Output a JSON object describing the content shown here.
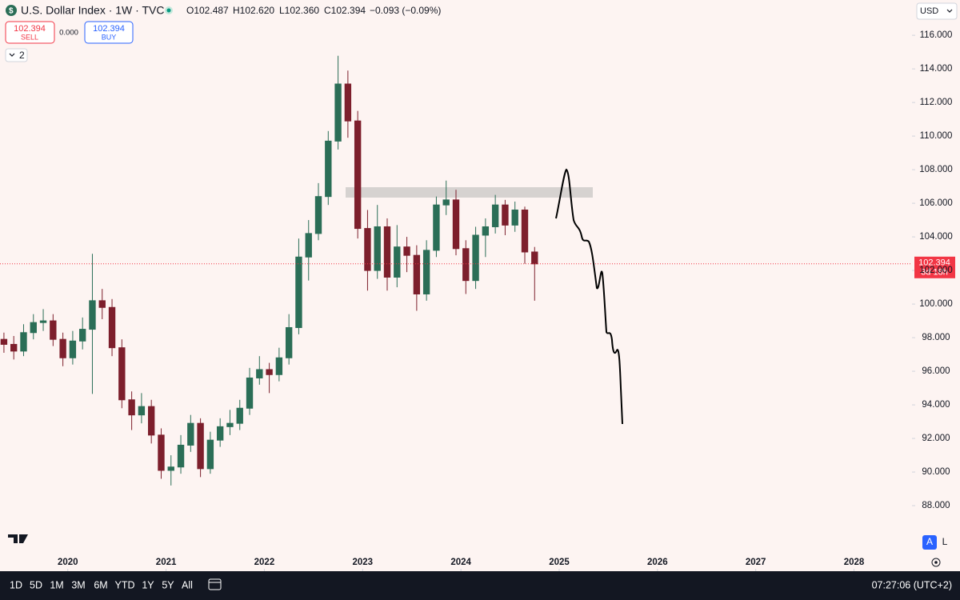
{
  "ui": {
    "title": "U.S. Dollar Index · 1W · TVC",
    "ohlc": [
      "O102.487",
      "H102.620",
      "L102.360",
      "C102.394"
    ],
    "change": "−0.093 (−0.09%)",
    "sell_price": "102.394",
    "sell_label": "SELL",
    "spread": "0.000",
    "buy_price": "102.394",
    "buy_label": "BUY",
    "indicators_count": "2",
    "currency": "USD",
    "auto_label": "A",
    "log_label": "L",
    "timeframes": [
      "1D",
      "5D",
      "1M",
      "3M",
      "6M",
      "YTD",
      "1Y",
      "5Y",
      "All"
    ],
    "clock": "07:27:06 (UTC+2)",
    "countdown": "3d 18h"
  },
  "chart_data": {
    "type": "candlestick",
    "xlim": [
      2019.31,
      2028.59
    ],
    "xticks": [
      2020,
      2021,
      2022,
      2023,
      2024,
      2025,
      2026,
      2027,
      2028
    ],
    "ylim": [
      84.05,
      118.1
    ],
    "yticks": [
      {
        "value": 88,
        "label": "88.000"
      },
      {
        "value": 90,
        "label": "90.000"
      },
      {
        "value": 92,
        "label": "92.000"
      },
      {
        "value": 94,
        "label": "94.000"
      },
      {
        "value": 96,
        "label": "96.000"
      },
      {
        "value": 98,
        "label": "98.000"
      },
      {
        "value": 100,
        "label": "100.000"
      },
      {
        "value": 102,
        "label": "102.000"
      },
      {
        "value": 104,
        "label": "104.000"
      },
      {
        "value": 106,
        "label": "106.000"
      },
      {
        "value": 108,
        "label": "108.000"
      },
      {
        "value": 110,
        "label": "110.000"
      },
      {
        "value": 112,
        "label": "112.000"
      },
      {
        "value": 114,
        "label": "114.000"
      },
      {
        "value": 116,
        "label": "116.000"
      }
    ],
    "last_price": 102.394,
    "up_color": "#2b6e57",
    "down_color": "#7d1f2c",
    "x": [
      2019.35,
      2019.45,
      2019.55,
      2019.65,
      2019.75,
      2019.85,
      2019.95,
      2020.05,
      2020.15,
      2020.25,
      2020.35,
      2020.45,
      2020.55,
      2020.65,
      2020.75,
      2020.85,
      2020.95,
      2021.05,
      2021.15,
      2021.25,
      2021.35,
      2021.45,
      2021.55,
      2021.65,
      2021.75,
      2021.85,
      2021.95,
      2022.05,
      2022.15,
      2022.25,
      2022.35,
      2022.45,
      2022.55,
      2022.65,
      2022.75,
      2022.85,
      2022.95,
      2023.05,
      2023.15,
      2023.25,
      2023.35,
      2023.45,
      2023.55,
      2023.65,
      2023.75,
      2023.85,
      2023.95,
      2024.05,
      2024.15,
      2024.25,
      2024.35,
      2024.45,
      2024.55,
      2024.65,
      2024.75
    ],
    "open": [
      97.9,
      97.6,
      97.2,
      98.3,
      98.9,
      99.0,
      97.9,
      96.8,
      97.8,
      98.5,
      100.2,
      99.8,
      97.4,
      94.3,
      93.4,
      93.9,
      92.2,
      90.1,
      90.3,
      91.6,
      92.9,
      90.2,
      91.9,
      92.7,
      92.9,
      93.8,
      95.6,
      96.1,
      95.8,
      96.8,
      98.6,
      102.8,
      104.2,
      106.4,
      109.7,
      113.1,
      110.9,
      104.5,
      102.0,
      104.6,
      101.6,
      103.4,
      102.9,
      100.6,
      103.2,
      105.9,
      106.2,
      103.3,
      101.4,
      104.1,
      104.6,
      105.9,
      104.7,
      105.6,
      103.1
    ],
    "high": [
      98.3,
      98.1,
      98.8,
      99.4,
      99.7,
      99.4,
      98.3,
      98.4,
      99.2,
      102.99,
      100.9,
      100.3,
      97.9,
      94.8,
      94.7,
      94.3,
      92.6,
      91.0,
      92.2,
      93.4,
      93.2,
      92.4,
      93.2,
      93.7,
      94.3,
      96.2,
      96.9,
      96.5,
      97.4,
      99.4,
      103.9,
      105.0,
      107.2,
      110.3,
      114.78,
      113.9,
      111.5,
      105.6,
      105.9,
      105.1,
      104.7,
      104.0,
      103.5,
      103.8,
      106.4,
      107.35,
      106.8,
      103.8,
      104.6,
      105.1,
      106.5,
      106.2,
      106.1,
      105.8,
      103.4
    ],
    "low": [
      97.1,
      96.7,
      96.9,
      97.9,
      98.4,
      97.5,
      96.3,
      96.4,
      97.3,
      94.65,
      99.1,
      96.9,
      93.8,
      92.5,
      92.9,
      91.7,
      89.6,
      89.2,
      89.9,
      91.2,
      89.7,
      89.9,
      91.5,
      92.2,
      92.5,
      93.4,
      95.2,
      94.7,
      95.4,
      96.4,
      98.2,
      101.4,
      103.8,
      105.9,
      109.2,
      109.9,
      103.9,
      100.8,
      101.5,
      100.8,
      101.0,
      101.9,
      99.6,
      100.2,
      102.8,
      105.3,
      102.9,
      100.6,
      100.9,
      102.8,
      104.2,
      104.1,
      104.3,
      102.4,
      100.2
    ],
    "close": [
      97.6,
      97.2,
      98.3,
      98.9,
      99.0,
      97.9,
      96.8,
      97.8,
      98.5,
      100.2,
      99.8,
      97.4,
      94.3,
      93.4,
      93.9,
      92.2,
      90.1,
      90.3,
      91.6,
      92.9,
      90.2,
      91.9,
      92.7,
      92.9,
      93.8,
      95.6,
      96.1,
      95.8,
      96.8,
      98.6,
      102.8,
      104.2,
      106.4,
      109.7,
      113.1,
      110.9,
      104.5,
      102.0,
      104.6,
      101.6,
      103.4,
      102.9,
      100.6,
      103.2,
      105.9,
      106.2,
      103.3,
      101.4,
      104.1,
      104.6,
      105.9,
      104.7,
      105.6,
      103.1,
      102.394
    ]
  }
}
